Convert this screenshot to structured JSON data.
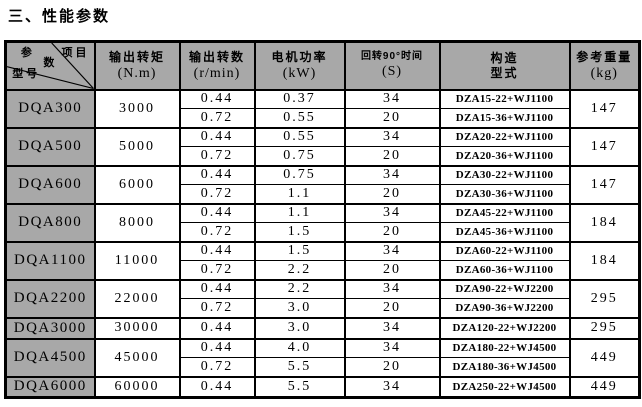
{
  "title": "三、性能参数",
  "table": {
    "header": {
      "corner": {
        "top_right": "项目",
        "mid1": "参",
        "mid2": "数",
        "bottom_left": "型号"
      },
      "columns": [
        {
          "line1": "输出转矩",
          "line2": "(N.m)"
        },
        {
          "line1": "输出转数",
          "line2": "(r/min)"
        },
        {
          "line1": "电机功率",
          "line2": "(kW)"
        },
        {
          "line1": "回转90°时间",
          "line2": "(S)",
          "small": true
        },
        {
          "line1": "构造",
          "line2": "型式",
          "line2_cn": true
        },
        {
          "line1": "参考重量",
          "line2": "(kg)"
        }
      ]
    },
    "rows": [
      {
        "model": "DQA300",
        "torque": "3000",
        "weight": "147",
        "subs": [
          {
            "speed": "0.44",
            "power": "0.37",
            "time": "34",
            "type": "DZA15-22+WJ1100"
          },
          {
            "speed": "0.72",
            "power": "0.55",
            "time": "20",
            "type": "DZA15-36+WJ1100"
          }
        ]
      },
      {
        "model": "DQA500",
        "torque": "5000",
        "weight": "147",
        "subs": [
          {
            "speed": "0.44",
            "power": "0.55",
            "time": "34",
            "type": "DZA20-22+WJ1100"
          },
          {
            "speed": "0.72",
            "power": "0.75",
            "time": "20",
            "type": "DZA20-36+WJ1100"
          }
        ]
      },
      {
        "model": "DQA600",
        "torque": "6000",
        "weight": "147",
        "subs": [
          {
            "speed": "0.44",
            "power": "0.75",
            "time": "34",
            "type": "DZA30-22+WJ1100"
          },
          {
            "speed": "0.72",
            "power": "1.1",
            "time": "20",
            "type": "DZA30-36+WJ1100"
          }
        ]
      },
      {
        "model": "DQA800",
        "torque": "8000",
        "weight": "184",
        "subs": [
          {
            "speed": "0.44",
            "power": "1.1",
            "time": "34",
            "type": "DZA45-22+WJ1100"
          },
          {
            "speed": "0.72",
            "power": "1.5",
            "time": "20",
            "type": "DZA45-36+WJ1100"
          }
        ]
      },
      {
        "model": "DQA1100",
        "torque": "11000",
        "weight": "184",
        "subs": [
          {
            "speed": "0.44",
            "power": "1.5",
            "time": "34",
            "type": "DZA60-22+WJ1100"
          },
          {
            "speed": "0.72",
            "power": "2.2",
            "time": "20",
            "type": "DZA60-36+WJ1100"
          }
        ]
      },
      {
        "model": "DQA2200",
        "torque": "22000",
        "weight": "295",
        "subs": [
          {
            "speed": "0.44",
            "power": "2.2",
            "time": "34",
            "type": "DZA90-22+WJ2200"
          },
          {
            "speed": "0.72",
            "power": "3.0",
            "time": "20",
            "type": "DZA90-36+WJ2200"
          }
        ]
      },
      {
        "model": "DQA3000",
        "torque": "30000",
        "weight": "295",
        "subs": [
          {
            "speed": "0.44",
            "power": "3.0",
            "time": "34",
            "type": "DZA120-22+WJ2200"
          }
        ]
      },
      {
        "model": "DQA4500",
        "torque": "45000",
        "weight": "449",
        "subs": [
          {
            "speed": "0.44",
            "power": "4.0",
            "time": "34",
            "type": "DZA180-22+WJ4500"
          },
          {
            "speed": "0.72",
            "power": "5.5",
            "time": "20",
            "type": "DZA180-36+WJ4500"
          }
        ]
      },
      {
        "model": "DQA6000",
        "torque": "60000",
        "weight": "449",
        "subs": [
          {
            "speed": "0.44",
            "power": "5.5",
            "time": "34",
            "type": "DZA250-22+WJ4500"
          }
        ]
      }
    ]
  },
  "colors": {
    "header_fill": "#a8a8a8",
    "border": "#000000"
  }
}
